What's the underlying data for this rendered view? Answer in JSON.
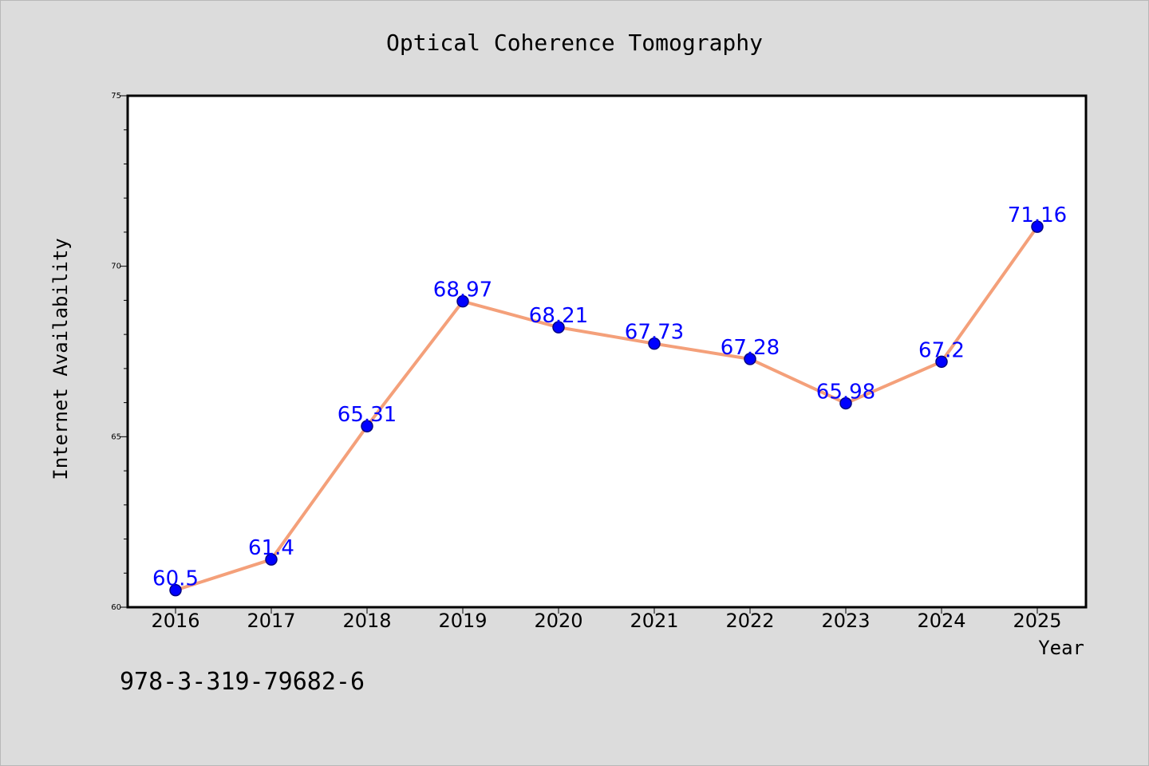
{
  "chart_data": {
    "type": "line",
    "title": "Optical Coherence Tomography",
    "xlabel": "Year",
    "ylabel": "Internet Availability",
    "x": [
      "2016",
      "2017",
      "2018",
      "2019",
      "2020",
      "2021",
      "2022",
      "2023",
      "2024",
      "2025"
    ],
    "series": [
      {
        "values": [
          60.5,
          61.4,
          65.31,
          68.97,
          68.21,
          67.73,
          67.28,
          65.98,
          67.2,
          71.16
        ],
        "labels": [
          "60.5",
          "61.4",
          "65.31",
          "68.97",
          "68.21",
          "67.73",
          "67.28",
          "65.98",
          "67.2",
          "71.16"
        ]
      }
    ],
    "ylim": [
      60,
      75
    ],
    "y_ticks": [
      "60",
      "65",
      "70",
      "75"
    ],
    "y_minor_step": 1,
    "grid": false,
    "legend": "none",
    "colors": {
      "line": "#f4a07a",
      "marker": "#0000ff",
      "marker_edge": "#000080",
      "data_label": "#0000ff",
      "plot_bg": "#ffffff",
      "page_bg": "#dcdcdc"
    }
  },
  "footer": {
    "isbn": "978-3-319-79682-6"
  }
}
